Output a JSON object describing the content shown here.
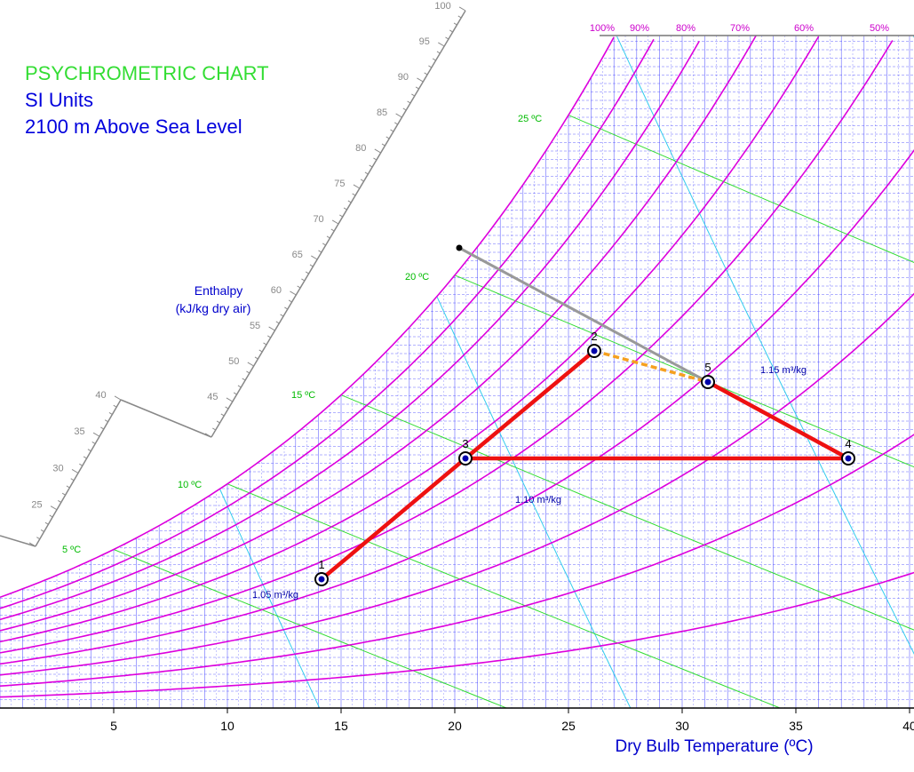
{
  "titles": {
    "line1": "PSYCHROMETRIC CHART",
    "line2": "SI Units",
    "line3": "2100 m Above Sea Level"
  },
  "colors": {
    "title1": "#33dd33",
    "title2": "#0000dd",
    "rh_curve": "#dd00dd",
    "wet_bulb": "#33dd33",
    "volume": "#33ccee",
    "grid": "#3333ff",
    "process": "#ee1111",
    "mixing": "#f5a020",
    "enthalpy_line": "#999999"
  },
  "chart_data": {
    "type": "line",
    "xlabel": "Dry Bulb Temperature (ºC)",
    "xlim": [
      0,
      41
    ],
    "x_ticks": [
      "5",
      "10",
      "15",
      "20",
      "25",
      "30",
      "35",
      "40"
    ],
    "enthalpy_axis": {
      "title_line1": "Enthalpy",
      "title_line2": "(kJ/kg dry air)",
      "ticks_lower": [
        "25",
        "30",
        "35",
        "40"
      ],
      "ticks_upper": [
        "45",
        "50",
        "55",
        "60",
        "65",
        "70",
        "75",
        "80",
        "85",
        "90",
        "95",
        "100"
      ]
    },
    "relative_humidity_labels": [
      "100%",
      "90%",
      "80%",
      "70%",
      "60%",
      "50%"
    ],
    "wet_bulb_labels": [
      "5 ºC",
      "10 ºC",
      "15 ºC",
      "20 ºC",
      "25 ºC"
    ],
    "specific_volume_labels": [
      "1.05 m³/kg",
      "1.10 m³/kg",
      "1.15 m³/kg"
    ],
    "points": [
      {
        "label": "1",
        "tdb": 15.0
      },
      {
        "label": "2",
        "tdb": 27.0
      },
      {
        "label": "3",
        "tdb": 21.3
      },
      {
        "label": "4",
        "tdb": 38.1
      },
      {
        "label": "5",
        "tdb": 32.0
      }
    ],
    "process_lines": [
      [
        "1",
        "3"
      ],
      [
        "3",
        "2"
      ],
      [
        "3",
        "4"
      ],
      [
        "4",
        "5"
      ]
    ],
    "mixing_line": [
      "2",
      "5"
    ],
    "grid": true
  }
}
